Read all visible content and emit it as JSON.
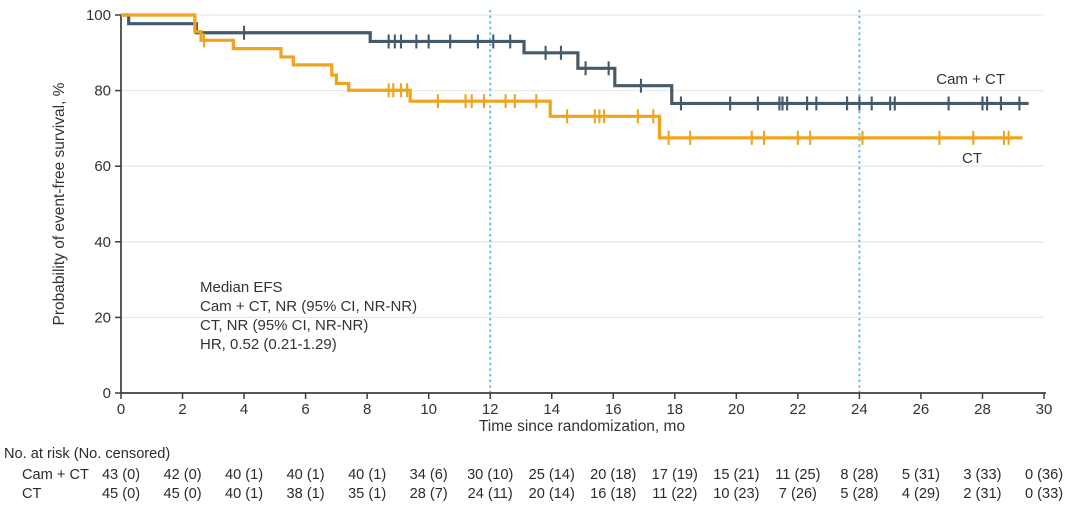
{
  "chart_data": {
    "type": "line",
    "subtype": "kaplan-meier-step",
    "title": "",
    "xlabel": "Time since randomization, mo",
    "ylabel": "Probability of event-free survival, %",
    "xlim": [
      0,
      30
    ],
    "ylim": [
      0,
      100
    ],
    "x_ticks": [
      0,
      2,
      4,
      6,
      8,
      10,
      12,
      14,
      16,
      18,
      20,
      22,
      24,
      26,
      28,
      30
    ],
    "y_ticks": [
      0,
      20,
      40,
      60,
      80,
      100
    ],
    "grid": "horizontal",
    "reference_lines_x": [
      12,
      24
    ],
    "legend_position": "right-on-curves",
    "series": [
      {
        "name": "Cam + CT",
        "color": "#455a6a",
        "steps": [
          [
            0,
            100
          ],
          [
            0.25,
            97.7
          ],
          [
            2.45,
            95.3
          ],
          [
            8.1,
            93.0
          ],
          [
            13.1,
            90.0
          ],
          [
            14.85,
            85.9
          ],
          [
            16.05,
            81.3
          ],
          [
            17.9,
            76.6
          ],
          [
            29.5,
            76.6
          ]
        ],
        "censor_times": [
          4.0,
          8.7,
          8.9,
          9.1,
          9.6,
          10.0,
          10.7,
          11.6,
          12.1,
          12.65,
          13.8,
          14.3,
          15.1,
          15.85,
          16.9,
          18.2,
          19.8,
          20.7,
          21.4,
          21.5,
          21.65,
          22.3,
          22.6,
          23.6,
          24.0,
          24.4,
          25.0,
          25.15,
          26.9,
          28.0,
          28.15,
          28.6,
          29.2
        ]
      },
      {
        "name": "CT",
        "color": "#f0a31c",
        "steps": [
          [
            0,
            100
          ],
          [
            2.4,
            95.6
          ],
          [
            2.6,
            93.3
          ],
          [
            3.65,
            91.1
          ],
          [
            5.2,
            88.9
          ],
          [
            5.6,
            86.8
          ],
          [
            6.85,
            84.1
          ],
          [
            7.0,
            81.9
          ],
          [
            7.4,
            80.1
          ],
          [
            9.4,
            77.2
          ],
          [
            13.95,
            73.2
          ],
          [
            17.5,
            67.5
          ],
          [
            29.3,
            67.5
          ]
        ],
        "censor_times": [
          2.7,
          8.7,
          8.85,
          9.1,
          9.3,
          10.3,
          11.2,
          11.4,
          11.8,
          12.5,
          12.8,
          13.5,
          14.5,
          15.4,
          15.55,
          15.7,
          16.8,
          17.3,
          17.8,
          18.5,
          20.5,
          20.9,
          22.0,
          22.4,
          24.1,
          26.6,
          27.7,
          28.7,
          28.85
        ]
      }
    ],
    "annotation_lines": [
      "Median EFS",
      "Cam + CT, NR (95% CI, NR-NR)",
      "CT, NR (95% CI, NR-NR)",
      "HR, 0.52 (0.21-1.29)"
    ],
    "style": {
      "grid_color": "#e9e9e9",
      "axis_color": "#3d3d3d",
      "text_color": "#333333",
      "reference_line_color": "#58c3ea"
    }
  },
  "risk_table": {
    "header": "No. at risk (No. censored)",
    "columns": [
      0,
      2,
      4,
      6,
      8,
      10,
      12,
      14,
      16,
      18,
      20,
      22,
      24,
      26,
      28,
      30
    ],
    "rows": [
      {
        "label": "Cam + CT",
        "values": [
          "43 (0)",
          "42 (0)",
          "40 (1)",
          "40 (1)",
          "40 (1)",
          "34 (6)",
          "30 (10)",
          "25 (14)",
          "20 (18)",
          "17 (19)",
          "15 (21)",
          "11 (25)",
          "8 (28)",
          "5 (31)",
          "3 (33)",
          "0 (36)"
        ]
      },
      {
        "label": "CT",
        "values": [
          "45 (0)",
          "45 (0)",
          "40 (1)",
          "38 (1)",
          "35 (1)",
          "28 (7)",
          "24 (11)",
          "20 (14)",
          "16 (18)",
          "11 (22)",
          "10 (23)",
          "7 (26)",
          "5 (28)",
          "4 (29)",
          "2 (31)",
          "0 (33)"
        ]
      }
    ]
  }
}
